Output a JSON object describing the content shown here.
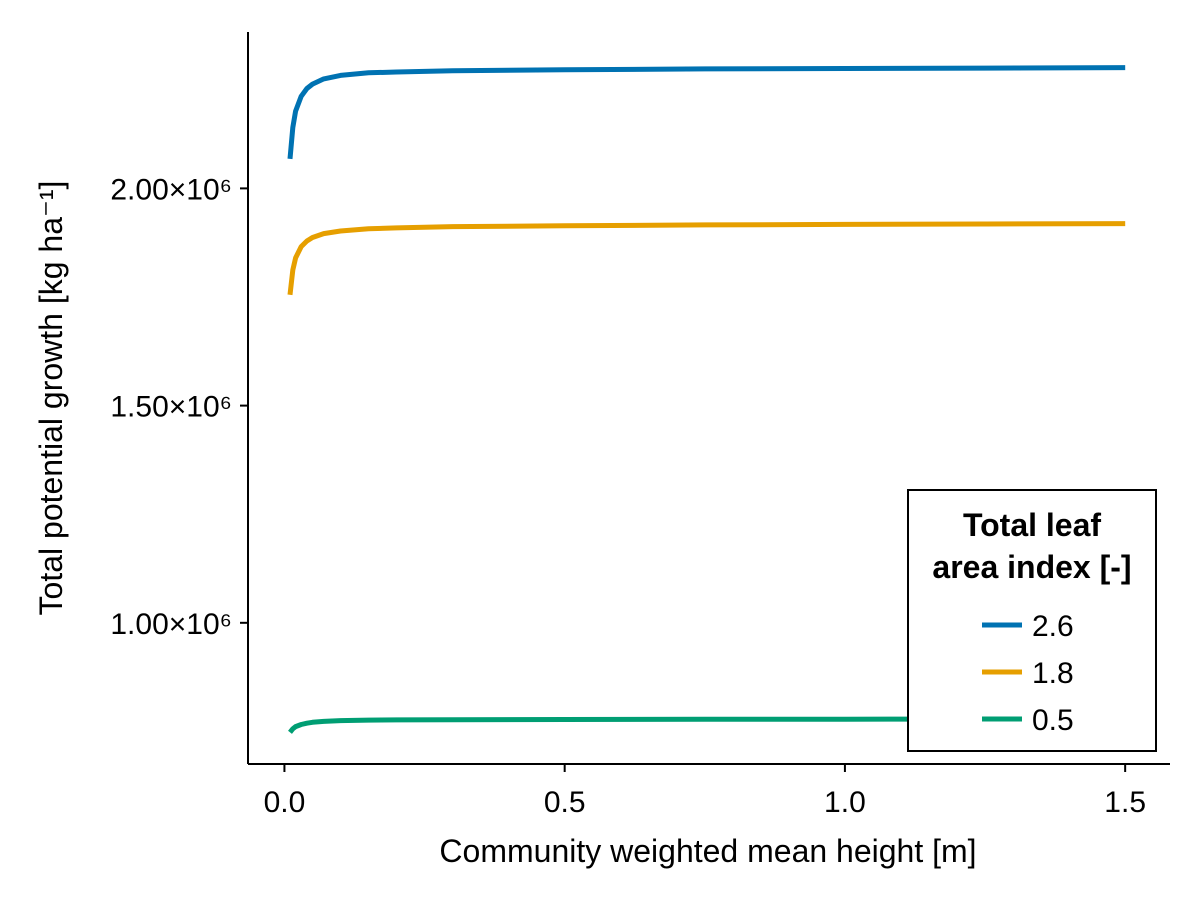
{
  "chart_data": {
    "type": "line",
    "title": "",
    "xlabel": "Community weighted mean height [m]",
    "ylabel": "Total potential growth [kg ha⁻¹]",
    "xlim": [
      -0.065,
      1.58
    ],
    "ylim": [
      675000,
      2360000
    ],
    "xticks": [
      {
        "value": 0.0,
        "label": "0.0"
      },
      {
        "value": 0.5,
        "label": "0.5"
      },
      {
        "value": 1.0,
        "label": "1.0"
      },
      {
        "value": 1.5,
        "label": "1.5"
      }
    ],
    "yticks": [
      {
        "value": 1000000,
        "label": "1.00×10⁶"
      },
      {
        "value": 1500000,
        "label": "1.50×10⁶"
      },
      {
        "value": 2000000,
        "label": "2.00×10⁶"
      }
    ],
    "grid": false,
    "legend": {
      "position": "bottom-right",
      "title_line1": "Total leaf",
      "title_line2": "area index [-]"
    },
    "x": [
      0.01,
      0.015,
      0.02,
      0.03,
      0.04,
      0.05,
      0.07,
      0.1,
      0.15,
      0.2,
      0.3,
      0.5,
      0.75,
      1.0,
      1.25,
      1.5
    ],
    "series": [
      {
        "name": "2.6",
        "color": "#0072B2",
        "values": [
          2068000,
          2140000,
          2178000,
          2212000,
          2230000,
          2240000,
          2252000,
          2260000,
          2266000,
          2268000,
          2271000,
          2273000,
          2275000,
          2276000,
          2277000,
          2278000
        ]
      },
      {
        "name": "1.8",
        "color": "#E69F00",
        "values": [
          1755000,
          1812000,
          1840000,
          1866000,
          1879000,
          1887000,
          1896000,
          1902000,
          1907000,
          1909000,
          1912000,
          1914000,
          1916000,
          1917000,
          1918000,
          1919000
        ]
      },
      {
        "name": "0.5",
        "color": "#009E73",
        "values": [
          748000,
          756000,
          761000,
          766000,
          769000,
          771000,
          773000,
          775000,
          776000,
          776500,
          777000,
          777500,
          778000,
          778200,
          778400,
          778500
        ]
      }
    ]
  }
}
